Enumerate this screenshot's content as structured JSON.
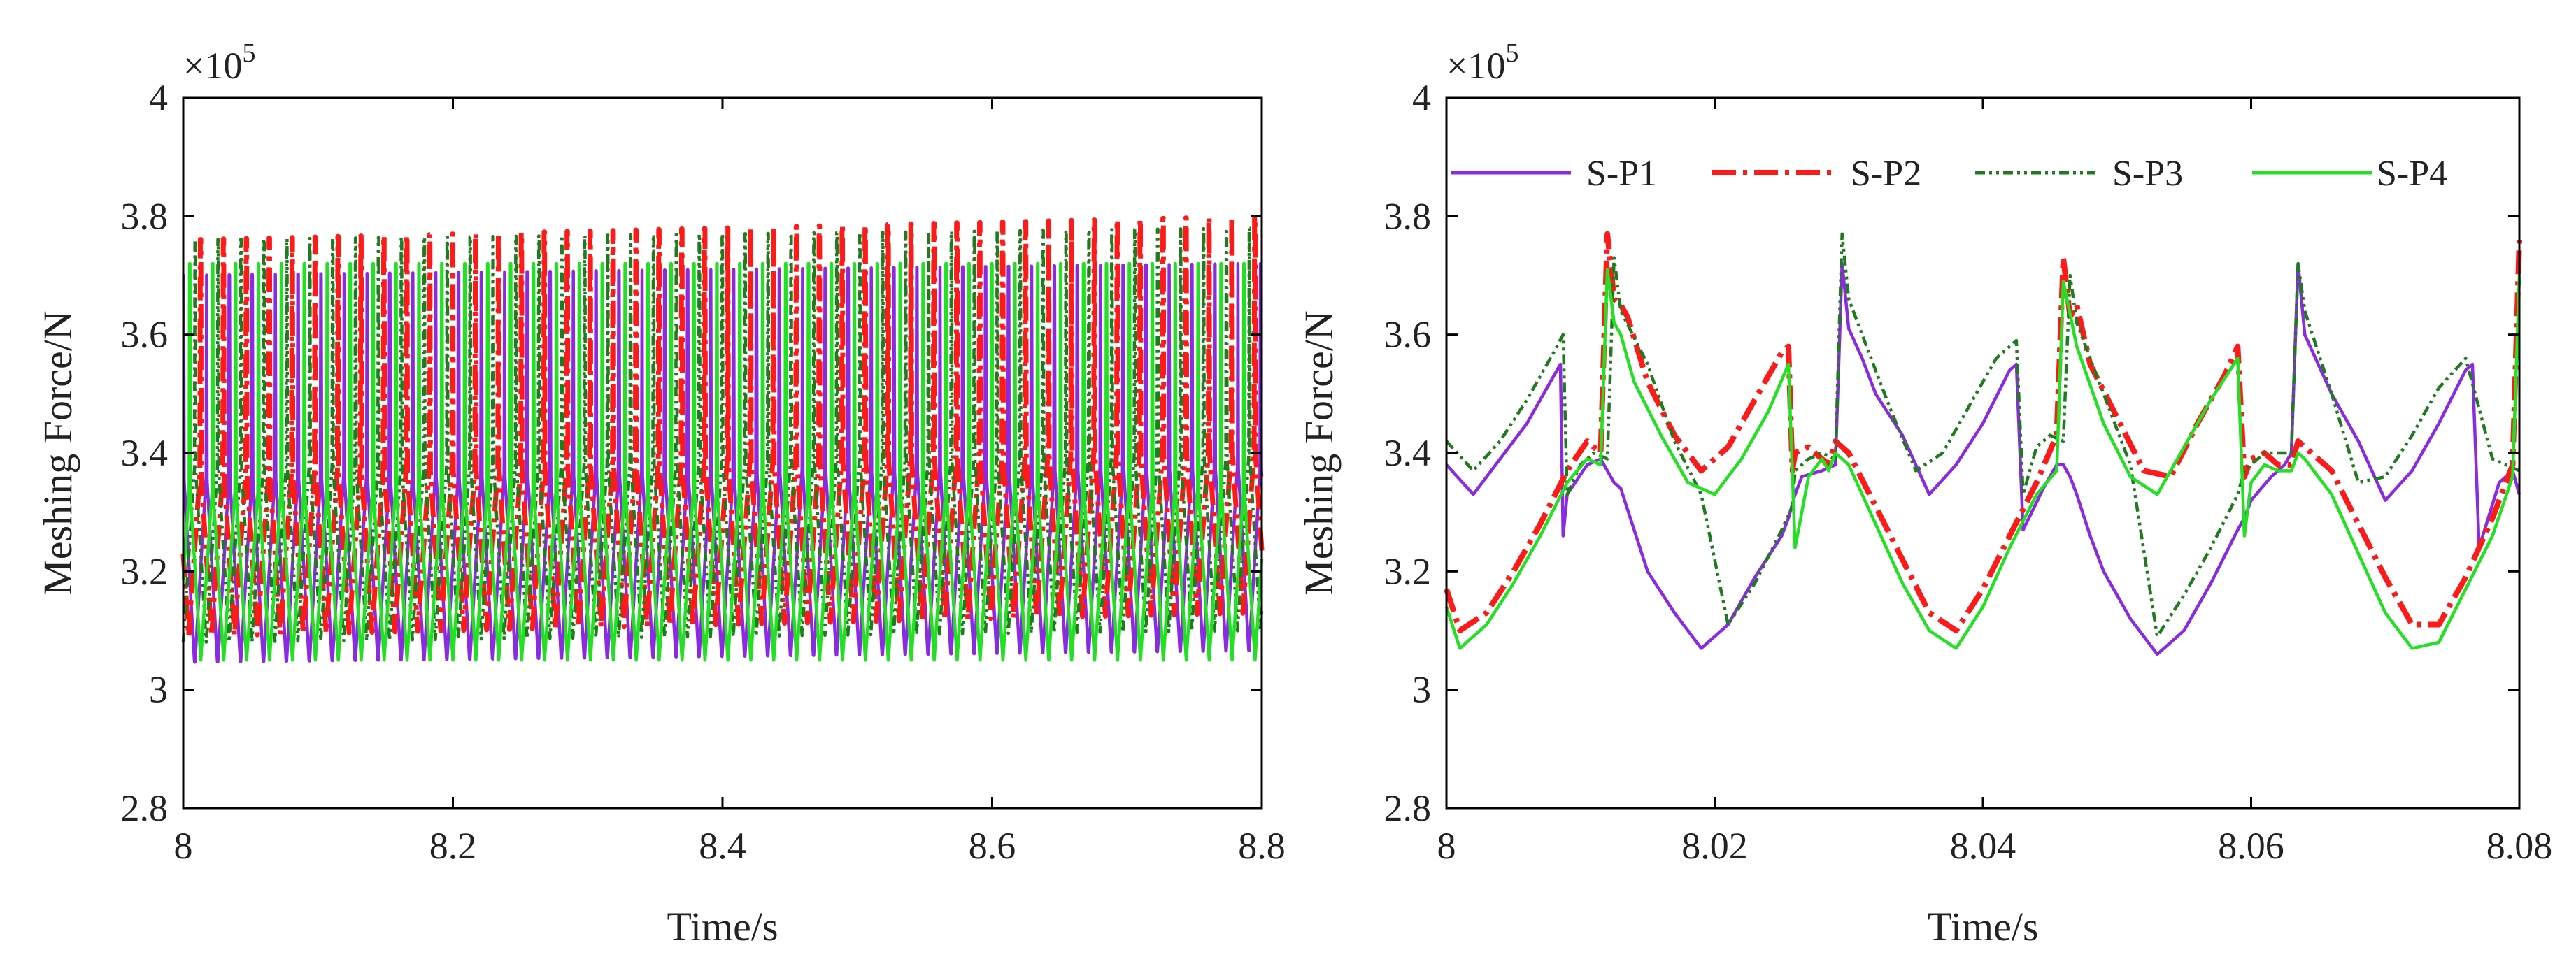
{
  "chart_data": [
    {
      "type": "line",
      "title": "",
      "xlabel": "Time/s",
      "ylabel": "Meshing Force/N",
      "xlim": [
        8,
        8.8
      ],
      "ylim": [
        2.8,
        4.0
      ],
      "y_multiplier": "×10",
      "y_multiplier_exp": "5",
      "x_ticks": [
        "8",
        "8.2",
        "8.4",
        "8.6",
        "8.8"
      ],
      "x_tick_values": [
        8,
        8.2,
        8.4,
        8.6,
        8.8
      ],
      "y_ticks": [
        "2.8",
        "3",
        "3.2",
        "3.4",
        "3.6",
        "3.8",
        "4"
      ],
      "y_tick_values": [
        2.8,
        3.0,
        3.2,
        3.4,
        3.6,
        3.8,
        4.0
      ],
      "grid": false,
      "legend": "none",
      "series": [
        {
          "name": "S-P1",
          "color": "#8A2BE2",
          "style": "solid",
          "mesh_period": 0.017,
          "phase": 0.0,
          "base_low": 3.04,
          "base_high": 3.36,
          "peak": 3.7,
          "trend": 0.02
        },
        {
          "name": "S-P2",
          "color": "#FF1A1A",
          "style": "dashdot",
          "mesh_period": 0.017,
          "phase": 0.0045,
          "base_low": 3.09,
          "base_high": 3.37,
          "peak": 3.76,
          "trend": 0.04
        },
        {
          "name": "S-P3",
          "color": "#1E7B1E",
          "style": "dashdotdot",
          "mesh_period": 0.017,
          "phase": 0.0085,
          "base_low": 3.08,
          "base_high": 3.38,
          "peak": 3.76,
          "trend": 0.02
        },
        {
          "name": "S-P4",
          "color": "#22E022",
          "style": "solid",
          "mesh_period": 0.017,
          "phase": 0.0125,
          "base_low": 3.05,
          "base_high": 3.34,
          "peak": 3.72,
          "trend": 0.0
        }
      ]
    },
    {
      "type": "line",
      "title": "",
      "xlabel": "Time/s",
      "ylabel": "Meshing Force/N",
      "xlim": [
        8,
        8.08
      ],
      "ylim": [
        2.8,
        4.0
      ],
      "y_multiplier": "×10",
      "y_multiplier_exp": "5",
      "x_ticks": [
        "8",
        "8.02",
        "8.04",
        "8.06",
        "8.08"
      ],
      "x_tick_values": [
        8,
        8.02,
        8.04,
        8.06,
        8.08
      ],
      "y_ticks": [
        "2.8",
        "3",
        "3.2",
        "3.4",
        "3.6",
        "3.8",
        "4"
      ],
      "y_tick_values": [
        2.8,
        3.0,
        3.2,
        3.4,
        3.6,
        3.8,
        4.0
      ],
      "grid": false,
      "legend": "top",
      "series": [
        {
          "name": "S-P1",
          "color": "#8A2BE2",
          "style": "solid",
          "x": [
            8.0,
            8.002,
            8.004,
            8.006,
            8.008,
            8.0085,
            8.0087,
            8.009,
            8.0105,
            8.0115,
            8.012,
            8.0125,
            8.013,
            8.014,
            8.015,
            8.017,
            8.019,
            8.021,
            8.023,
            8.025,
            8.0255,
            8.026,
            8.0265,
            8.028,
            8.029,
            8.0295,
            8.03,
            8.031,
            8.032,
            8.034,
            8.036,
            8.038,
            8.04,
            8.042,
            8.0425,
            8.043,
            8.0445,
            8.0455,
            8.046,
            8.0465,
            8.047,
            8.048,
            8.049,
            8.051,
            8.053,
            8.055,
            8.057,
            8.059,
            8.0595,
            8.06,
            8.0615,
            8.0625,
            8.063,
            8.0635,
            8.064,
            8.065,
            8.066,
            8.068,
            8.07,
            8.072,
            8.074,
            8.076,
            8.0765,
            8.077,
            8.0785,
            8.0795,
            8.08
          ],
          "y": [
            3.38,
            3.33,
            3.39,
            3.45,
            3.53,
            3.55,
            3.26,
            3.33,
            3.38,
            3.39,
            3.37,
            3.35,
            3.34,
            3.27,
            3.2,
            3.13,
            3.07,
            3.11,
            3.19,
            3.26,
            3.29,
            3.33,
            3.36,
            3.37,
            3.38,
            3.72,
            3.61,
            3.56,
            3.5,
            3.43,
            3.33,
            3.38,
            3.45,
            3.54,
            3.55,
            3.27,
            3.34,
            3.38,
            3.38,
            3.36,
            3.33,
            3.26,
            3.2,
            3.12,
            3.06,
            3.1,
            3.18,
            3.27,
            3.29,
            3.32,
            3.36,
            3.38,
            3.4,
            3.72,
            3.6,
            3.55,
            3.5,
            3.42,
            3.32,
            3.37,
            3.45,
            3.54,
            3.55,
            3.24,
            3.35,
            3.37,
            3.33
          ]
        },
        {
          "name": "S-P2",
          "color": "#FF1A1A",
          "style": "dashdot",
          "x": [
            8.0,
            8.001,
            8.003,
            8.005,
            8.007,
            8.009,
            8.0105,
            8.0115,
            8.012,
            8.0125,
            8.013,
            8.0135,
            8.015,
            8.017,
            8.019,
            8.021,
            8.023,
            8.025,
            8.0255,
            8.0258,
            8.026,
            8.027,
            8.028,
            8.0285,
            8.029,
            8.03,
            8.032,
            8.034,
            8.036,
            8.038,
            8.04,
            8.042,
            8.044,
            8.0455,
            8.046,
            8.0465,
            8.047,
            8.048,
            8.05,
            8.052,
            8.054,
            8.056,
            8.058,
            8.059,
            8.0595,
            8.06,
            8.061,
            8.062,
            8.063,
            8.0635,
            8.064,
            8.066,
            8.068,
            8.07,
            8.072,
            8.074,
            8.076,
            8.078,
            8.0795,
            8.08
          ],
          "y": [
            3.17,
            3.1,
            3.13,
            3.2,
            3.28,
            3.37,
            3.42,
            3.4,
            3.77,
            3.66,
            3.65,
            3.63,
            3.52,
            3.43,
            3.37,
            3.41,
            3.49,
            3.57,
            3.58,
            3.37,
            3.4,
            3.41,
            3.39,
            3.38,
            3.42,
            3.4,
            3.31,
            3.22,
            3.13,
            3.1,
            3.17,
            3.26,
            3.35,
            3.43,
            3.73,
            3.63,
            3.65,
            3.55,
            3.46,
            3.37,
            3.36,
            3.45,
            3.53,
            3.58,
            3.36,
            3.39,
            3.4,
            3.38,
            3.38,
            3.42,
            3.41,
            3.37,
            3.28,
            3.19,
            3.11,
            3.11,
            3.19,
            3.29,
            3.38,
            3.76
          ]
        },
        {
          "name": "S-P3",
          "color": "#1E7B1E",
          "style": "dashdotdot",
          "x": [
            8.0,
            8.002,
            8.004,
            8.006,
            8.008,
            8.0087,
            8.009,
            8.01,
            8.011,
            8.012,
            8.0125,
            8.013,
            8.015,
            8.017,
            8.019,
            8.021,
            8.023,
            8.025,
            8.0258,
            8.026,
            8.027,
            8.028,
            8.029,
            8.0295,
            8.03,
            8.031,
            8.033,
            8.035,
            8.037,
            8.039,
            8.041,
            8.0425,
            8.043,
            8.044,
            8.045,
            8.046,
            8.0465,
            8.047,
            8.049,
            8.051,
            8.053,
            8.055,
            8.057,
            8.059,
            8.0595,
            8.06,
            8.061,
            8.062,
            8.063,
            8.0635,
            8.064,
            8.066,
            8.068,
            8.07,
            8.072,
            8.074,
            8.076,
            8.078,
            8.08
          ],
          "y": [
            3.42,
            3.37,
            3.42,
            3.49,
            3.57,
            3.6,
            3.33,
            3.38,
            3.4,
            3.39,
            3.73,
            3.64,
            3.55,
            3.42,
            3.33,
            3.11,
            3.18,
            3.27,
            3.31,
            3.37,
            3.39,
            3.4,
            3.39,
            3.77,
            3.66,
            3.6,
            3.48,
            3.37,
            3.4,
            3.48,
            3.56,
            3.59,
            3.33,
            3.41,
            3.43,
            3.42,
            3.7,
            3.62,
            3.5,
            3.38,
            3.09,
            3.16,
            3.24,
            3.33,
            3.37,
            3.38,
            3.4,
            3.4,
            3.4,
            3.72,
            3.64,
            3.5,
            3.35,
            3.36,
            3.43,
            3.51,
            3.56,
            3.39,
            3.37
          ]
        },
        {
          "name": "S-P4",
          "color": "#22E022",
          "style": "solid",
          "x": [
            8.0,
            8.001,
            8.003,
            8.005,
            8.007,
            8.009,
            8.0105,
            8.0115,
            8.012,
            8.0125,
            8.013,
            8.014,
            8.016,
            8.018,
            8.02,
            8.022,
            8.024,
            8.0255,
            8.026,
            8.027,
            8.028,
            8.0285,
            8.029,
            8.03,
            8.032,
            8.034,
            8.036,
            8.038,
            8.04,
            8.042,
            8.044,
            8.0455,
            8.046,
            8.047,
            8.049,
            8.051,
            8.053,
            8.055,
            8.057,
            8.059,
            8.0595,
            8.06,
            8.061,
            8.062,
            8.063,
            8.0635,
            8.064,
            8.066,
            8.068,
            8.07,
            8.072,
            8.074,
            8.076,
            8.078,
            8.0795,
            8.08
          ],
          "y": [
            3.14,
            3.07,
            3.11,
            3.18,
            3.26,
            3.35,
            3.39,
            3.38,
            3.71,
            3.62,
            3.6,
            3.52,
            3.43,
            3.35,
            3.33,
            3.39,
            3.47,
            3.55,
            3.24,
            3.36,
            3.39,
            3.37,
            3.4,
            3.38,
            3.28,
            3.18,
            3.1,
            3.07,
            3.14,
            3.24,
            3.33,
            3.37,
            3.69,
            3.58,
            3.45,
            3.36,
            3.33,
            3.41,
            3.49,
            3.56,
            3.26,
            3.35,
            3.38,
            3.37,
            3.37,
            3.4,
            3.39,
            3.33,
            3.23,
            3.13,
            3.07,
            3.08,
            3.17,
            3.26,
            3.36,
            3.7
          ]
        }
      ]
    }
  ]
}
